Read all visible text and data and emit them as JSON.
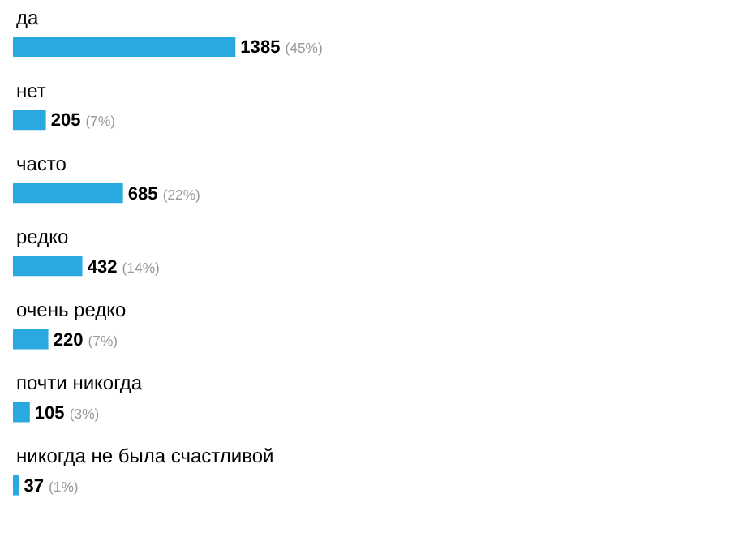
{
  "chart_data": {
    "type": "bar",
    "orientation": "horizontal",
    "categories": [
      "да",
      "нет",
      "часто",
      "редко",
      "очень редко",
      "почти никогда",
      "никогда не была счастливой"
    ],
    "values": [
      1385,
      205,
      685,
      432,
      220,
      105,
      37
    ],
    "value_labels": [
      "1385 (45%)",
      "205 (7%)",
      "685 (22%)",
      "432 (14%)",
      "220 (7%)",
      "105 (3%)",
      "37 (1%)"
    ],
    "color": "#2aa8e0",
    "grid": false,
    "legend": false,
    "tick_labels": false
  }
}
